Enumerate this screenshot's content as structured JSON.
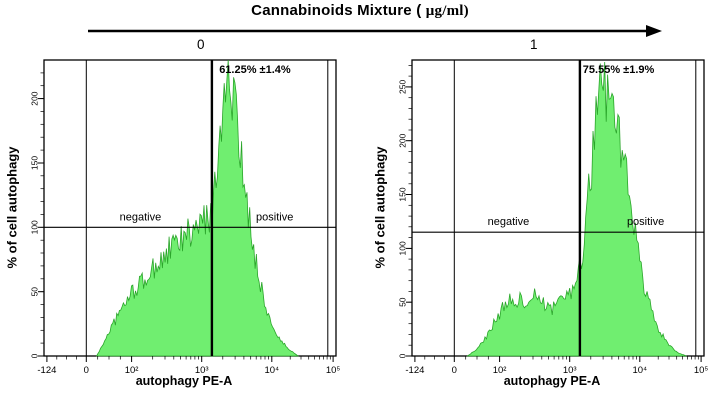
{
  "header": {
    "title_prefix": "Cannabinoids Mixture ( ",
    "title_unit": "μg/ml)"
  },
  "chart_data": [
    {
      "type": "histogram",
      "dose": "0",
      "annotation": "61.25% ±1.4%",
      "xlabel": "autophagy PE-A",
      "ylabel": "% of cell autophagy",
      "region_labels": [
        {
          "text": "negative",
          "f": 0.33
        },
        {
          "text": "positive",
          "f": 0.79
        }
      ],
      "x_ticks": [
        {
          "label": "-124",
          "f": 0.01
        },
        {
          "label": "0",
          "f": 0.145
        },
        {
          "label": "10²",
          "f": 0.3
        },
        {
          "label": "10³",
          "f": 0.54
        },
        {
          "label": "10⁴",
          "f": 0.78
        },
        {
          "label": "10⁵",
          "f": 0.99
        }
      ],
      "y_ticks": [
        0,
        50,
        100,
        150,
        200
      ],
      "ymax": 230,
      "gate": {
        "v_thin": [
          0.145,
          0.972
        ],
        "v_thick": 0.575,
        "h_line": 100
      },
      "ann_f": 0.6,
      "fill": "#70ee70",
      "edge": "#2aa52a",
      "curve": [
        [
          0.18,
          0
        ],
        [
          0.2,
          8
        ],
        [
          0.22,
          18
        ],
        [
          0.25,
          30
        ],
        [
          0.28,
          42
        ],
        [
          0.31,
          52
        ],
        [
          0.34,
          58
        ],
        [
          0.37,
          66
        ],
        [
          0.4,
          74
        ],
        [
          0.43,
          82
        ],
        [
          0.46,
          88
        ],
        [
          0.49,
          94
        ],
        [
          0.52,
          98
        ],
        [
          0.55,
          104
        ],
        [
          0.575,
          112
        ],
        [
          0.59,
          140
        ],
        [
          0.605,
          185
        ],
        [
          0.62,
          218
        ],
        [
          0.635,
          212
        ],
        [
          0.65,
          195
        ],
        [
          0.665,
          170
        ],
        [
          0.68,
          140
        ],
        [
          0.7,
          110
        ],
        [
          0.72,
          82
        ],
        [
          0.74,
          58
        ],
        [
          0.76,
          38
        ],
        [
          0.78,
          24
        ],
        [
          0.81,
          12
        ],
        [
          0.84,
          5
        ],
        [
          0.87,
          0
        ]
      ]
    },
    {
      "type": "histogram",
      "dose": "1",
      "annotation": "75.55% ±1.9%",
      "xlabel": "autophagy PE-A",
      "ylabel": "% of cell autophagy",
      "region_labels": [
        {
          "text": "negative",
          "f": 0.33
        },
        {
          "text": "positive",
          "f": 0.8
        }
      ],
      "x_ticks": [
        {
          "label": "-124",
          "f": 0.01
        },
        {
          "label": "0",
          "f": 0.145
        },
        {
          "label": "10²",
          "f": 0.3
        },
        {
          "label": "10³",
          "f": 0.54
        },
        {
          "label": "10⁴",
          "f": 0.78
        },
        {
          "label": "10⁵",
          "f": 0.99
        }
      ],
      "y_ticks": [
        0,
        50,
        100,
        150,
        200,
        250
      ],
      "ymax": 275,
      "gate": {
        "v_thin": [
          0.145,
          0.972
        ],
        "v_thick": 0.575,
        "h_line": 115
      },
      "ann_f": 0.585,
      "fill": "#70ee70",
      "edge": "#2aa52a",
      "curve": [
        [
          0.19,
          0
        ],
        [
          0.22,
          6
        ],
        [
          0.25,
          16
        ],
        [
          0.28,
          30
        ],
        [
          0.31,
          44
        ],
        [
          0.33,
          52
        ],
        [
          0.35,
          48
        ],
        [
          0.37,
          56
        ],
        [
          0.39,
          50
        ],
        [
          0.42,
          55
        ],
        [
          0.45,
          48
        ],
        [
          0.48,
          44
        ],
        [
          0.5,
          48
        ],
        [
          0.53,
          54
        ],
        [
          0.56,
          64
        ],
        [
          0.58,
          88
        ],
        [
          0.6,
          135
        ],
        [
          0.62,
          195
        ],
        [
          0.64,
          245
        ],
        [
          0.655,
          258
        ],
        [
          0.67,
          248
        ],
        [
          0.69,
          230
        ],
        [
          0.71,
          205
        ],
        [
          0.73,
          170
        ],
        [
          0.75,
          135
        ],
        [
          0.77,
          100
        ],
        [
          0.79,
          70
        ],
        [
          0.82,
          42
        ],
        [
          0.85,
          22
        ],
        [
          0.88,
          10
        ],
        [
          0.91,
          3
        ],
        [
          0.94,
          0
        ]
      ]
    }
  ]
}
